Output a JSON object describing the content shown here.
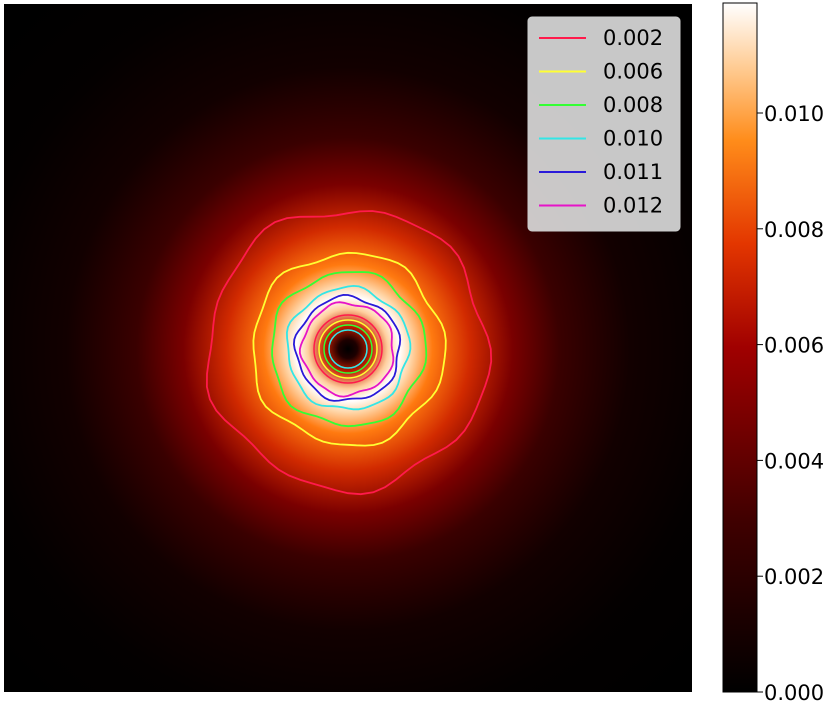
{
  "chart_data": {
    "type": "heatmap",
    "title": "",
    "xlabel": "",
    "ylabel": "",
    "grid": false,
    "colormap": "gist_heat",
    "description_of_field": "radially symmetric intensity: dark center, bright ring, decaying to zero outward",
    "value_range": [
      0.0,
      0.0119
    ],
    "ring_peak_value": 0.0119,
    "colorbar": {
      "ticks": [
        0.0,
        0.002,
        0.004,
        0.006,
        0.008,
        0.01
      ],
      "tick_labels": [
        "0.000",
        "0.002",
        "0.004",
        "0.006",
        "0.008",
        "0.010"
      ],
      "range": [
        0.0,
        0.0119
      ]
    },
    "contours": [
      {
        "level": 0.002,
        "label": "0.002",
        "color": "#ff1a4b"
      },
      {
        "level": 0.006,
        "label": "0.006",
        "color": "#ffff33"
      },
      {
        "level": 0.008,
        "label": "0.008",
        "color": "#33ff33"
      },
      {
        "level": 0.01,
        "label": "0.010",
        "color": "#33e6e6"
      },
      {
        "level": 0.011,
        "label": "0.011",
        "color": "#2a1ad9"
      },
      {
        "level": 0.012,
        "label": "0.012",
        "color": "#e614c8"
      }
    ],
    "legend": {
      "placement": "top-right"
    }
  }
}
